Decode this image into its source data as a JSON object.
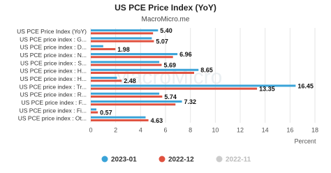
{
  "chart_data": {
    "type": "hbar",
    "title": "US PCE Price Index (YoY)",
    "subtitle": "MacroMicro.me",
    "watermark": "MacroMicro",
    "x_label": "Percent",
    "categories": [
      "US PCE Price Index (YoY)",
      "US PCE price index : G...",
      "US PCE price index : D...",
      "US PCE price index : N...",
      "US PCE price index : S...",
      "US PCE price index : H...",
      "US PCE price index : H...",
      "US PCE price index : Tr...",
      "US PCE price index : R...",
      "US PCE price index : F...",
      "US PCE price index : Fi...",
      "US PCE price index : Ot..."
    ],
    "series": [
      {
        "name": "2023-01",
        "color": "#3aa3d8",
        "values": [
          5.4,
          4.9,
          1.0,
          6.96,
          5.5,
          8.65,
          2.1,
          16.45,
          5.5,
          7.32,
          0.45,
          4.4
        ],
        "value_labels": [
          "5.40",
          null,
          null,
          "6.96",
          null,
          "8.65",
          null,
          "16.45",
          null,
          "7.32",
          null,
          null
        ]
      },
      {
        "name": "2022-12",
        "color": "#e0513f",
        "values": [
          5.0,
          5.07,
          1.98,
          6.6,
          5.69,
          8.3,
          2.48,
          13.35,
          5.74,
          6.8,
          0.57,
          4.63
        ],
        "value_labels": [
          null,
          "5.07",
          "1.98",
          null,
          "5.69",
          null,
          "2.48",
          "13.35",
          "5.74",
          null,
          "0.57",
          "4.63"
        ]
      },
      {
        "name": "2022-11",
        "color": "#cccccc",
        "hidden": true
      }
    ],
    "xlim": [
      0,
      18
    ],
    "xticks": [
      0,
      2,
      4,
      6,
      8,
      10,
      12,
      14,
      16,
      18
    ],
    "grid": true
  }
}
